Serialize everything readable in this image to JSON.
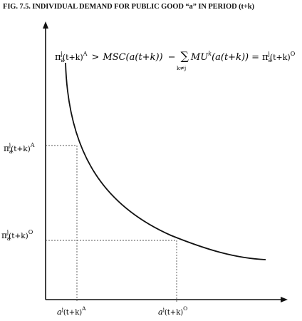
{
  "title": "FIG. 7.5. INDIVIDUAL DEMAND FOR PUBLIC GOOD “a” IN PERIOD (t+k)",
  "equation": {
    "lhs_base": "π",
    "lhs_sub": "a",
    "lhs_sup": "j",
    "lhs_arg": "(t+k)",
    "lhs_sup2": "A",
    "gt": ">",
    "msc": "MSC(a(t+k))",
    "minus": "−",
    "sum": "∑",
    "sum_sub": "k≠j",
    "mu": "MU",
    "mu_sup": "k",
    "mu_arg": "(a(t+k))",
    "eq": "=",
    "rhs_base": "π",
    "rhs_sub": "a",
    "rhs_sup": "j",
    "rhs_arg": "(t+k)",
    "rhs_sup2": "O"
  },
  "y_labels": {
    "upper": {
      "base": "π",
      "sub": "a",
      "sup": "j",
      "arg": "(t+k)",
      "sup2": "A"
    },
    "lower": {
      "base": "π",
      "sub": "a",
      "sup": "j",
      "arg": "(t+k)",
      "sup2": "O"
    }
  },
  "x_labels": {
    "left": {
      "base": "a",
      "sup": "j",
      "arg": "(t+k)",
      "sup2": "A"
    },
    "right": {
      "base": "a",
      "sup": "j",
      "arg": "(t+k)",
      "sup2": "O"
    }
  },
  "colors": {
    "ink": "#111111",
    "guide": "#555555"
  }
}
